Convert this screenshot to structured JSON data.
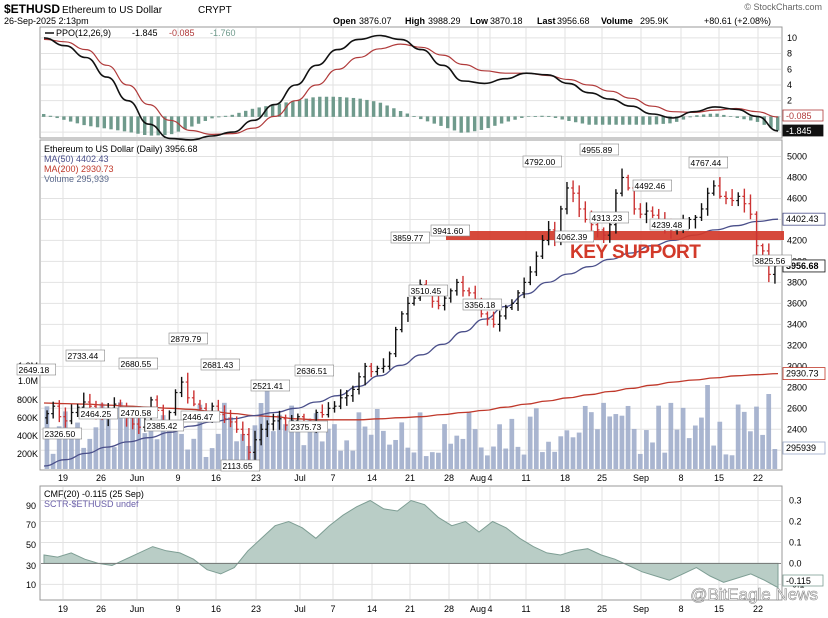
{
  "header": {
    "symbol": "$ETHUSD",
    "name": "Ethereum to US Dollar",
    "exchange": "CRYPT",
    "date": "26-Sep-2025 2:13pm",
    "open_label": "Open",
    "open": "3876.07",
    "high_label": "High",
    "high": "3988.29",
    "low_label": "Low",
    "low": "3870.18",
    "last_label": "Last",
    "last": "3956.68",
    "volume_label": "Volume",
    "volume": "295.9K",
    "change": "+80.61 (+2.08%)",
    "brand": "© StockCharts.com"
  },
  "ppo_panel": {
    "legend_name": "PPO(12,26,9)",
    "legend_ppo": "-1.845",
    "legend_signal": "-0.085",
    "legend_hist": "-1.760",
    "last_signal_tag": "-0.085",
    "last_ppo_tag": "-1.845",
    "colors": {
      "ppo": "#111111",
      "signal": "#b03a3a",
      "histogram": "#6f9a8c"
    }
  },
  "price_panel": {
    "legend_title": "Ethereum to US Dollar (Daily) 3956.68",
    "legend_ma50": "MA(50) 4402.43",
    "legend_ma200": "MA(200) 2930.73",
    "legend_volume": "Volume 295,939",
    "colors": {
      "up": "#111111",
      "down": "#cc3333",
      "ma50": "#4a4f8a",
      "ma200": "#c0392b",
      "volume": "#9aa8c8",
      "support": "#d23a2a"
    },
    "support_text": "KEY SUPPORT",
    "support_level": 3960
  },
  "cmf_panel": {
    "legend_cmf": "CMF(20) -0.115 (25 Sep)",
    "legend_sctr": "SCTR-$ETHUSD undef",
    "last_tag": "-0.115",
    "colors": {
      "fill": "#b9cdc6",
      "line": "#7e9e94"
    }
  },
  "watermark": "@BitEagle News",
  "chart_data": [
    {
      "type": "line",
      "title": "PPO(12,26,9)",
      "ylim": [
        -2.5,
        11
      ],
      "y_ticks": [
        "10",
        "8",
        "6",
        "4",
        "2",
        "0",
        "-2"
      ],
      "x_tick_labels": [],
      "series": [
        {
          "name": "PPO",
          "values": [
            10,
            9,
            7.5,
            5,
            2,
            -1,
            -2.8,
            -3,
            -2.5,
            -2,
            -0.5,
            1.5,
            4,
            6.5,
            8.5,
            9.8,
            10.3,
            9.8,
            8.5,
            6.5,
            4.5,
            4.2,
            4.8,
            5.5,
            5.3,
            4.2,
            3,
            2.2,
            1.3,
            0.3,
            -0.2,
            0.6,
            1.2,
            0.9,
            0,
            -1.845
          ]
        },
        {
          "name": "Signal",
          "values": [
            9.8,
            9.5,
            8.5,
            6.5,
            4,
            1.5,
            -0.5,
            -1.8,
            -2.3,
            -2.2,
            -1.5,
            0,
            2,
            4,
            6,
            7.5,
            8.6,
            9.2,
            8.8,
            7.8,
            6.6,
            5.8,
            5.5,
            5.5,
            5.2,
            4.7,
            4,
            3.2,
            2.3,
            1.3,
            0.6,
            0.5,
            0.8,
            1,
            0.6,
            -0.085
          ]
        },
        {
          "name": "Histogram",
          "values": [
            0.3,
            -0.4,
            -1.1,
            -1.5,
            -1.9,
            -2.4,
            -2.3,
            -1.3,
            -0.2,
            0.2,
            1.0,
            1.5,
            2.0,
            2.5,
            2.5,
            2.3,
            1.8,
            0.7,
            -0.3,
            -1.2,
            -2.1,
            -1.6,
            -0.7,
            0,
            0.1,
            -0.5,
            -1,
            -1,
            -1,
            -1,
            -0.8,
            0.1,
            0.4,
            -0.1,
            -0.6,
            -1.76
          ]
        }
      ]
    },
    {
      "type": "candlestick",
      "title": "Ethereum to US Dollar (Daily) 3956.68",
      "ylim": [
        2050,
        5100
      ],
      "y_ticks": [
        5000,
        4800,
        4600,
        4400,
        4200,
        4000,
        3800,
        3600,
        3400,
        3200,
        3000,
        2800,
        2600,
        2400,
        2200
      ],
      "right_tags": [
        "4402.43",
        "3956.68",
        "2930.73"
      ],
      "x_tick_labels": [
        "19",
        "26",
        "Jun",
        "9",
        "16",
        "23",
        "Jul",
        "7",
        "14",
        "21",
        "28",
        "Aug",
        "4",
        "11",
        "18",
        "25",
        "Sep",
        "8",
        "15",
        "22"
      ],
      "closes": [
        2549,
        2620,
        2520,
        2480,
        2560,
        2610,
        2660,
        2620,
        2570,
        2520,
        2600,
        2640,
        2580,
        2510,
        2450,
        2420,
        2520,
        2680,
        2580,
        2470,
        2560,
        2750,
        2850,
        2700,
        2640,
        2600,
        2550,
        2620,
        2540,
        2500,
        2470,
        2400,
        2350,
        2180,
        2300,
        2400,
        2450,
        2480,
        2500,
        2440,
        2480,
        2520,
        2460,
        2420,
        2560,
        2540,
        2600,
        2620,
        2700,
        2720,
        2780,
        2900,
        3000,
        2950,
        2980,
        3000,
        3120,
        3350,
        3500,
        3600,
        3650,
        3780,
        3700,
        3620,
        3580,
        3650,
        3720,
        3800,
        3720,
        3700,
        3620,
        3500,
        3450,
        3400,
        3480,
        3560,
        3600,
        3700,
        3800,
        3900,
        4050,
        4200,
        4300,
        4200,
        4500,
        4700,
        4650,
        4500,
        4400,
        4350,
        4300,
        4250,
        4350,
        4650,
        4800,
        4700,
        4500,
        4450,
        4480,
        4440,
        4400,
        4320,
        4300,
        4330,
        4380,
        4400,
        4420,
        4500,
        4650,
        4720,
        4620,
        4600,
        4580,
        4620,
        4550,
        4450,
        4150,
        4100,
        3876,
        3957
      ],
      "price_labels": [
        "2649.18",
        "2733.44",
        "2680.55",
        "2879.79",
        "2681.43",
        "2464.25",
        "2470.58",
        "2446.47",
        "2521.41",
        "2636.51",
        "2385.42",
        "2326.50",
        "2375.73",
        "2113.65",
        "3859.77",
        "3941.60",
        "3510.45",
        "3356.18",
        "4792.00",
        "4955.89",
        "4492.46",
        "4767.44",
        "4313.23",
        "4239.48",
        "4062.39",
        "3825.56"
      ],
      "series": [
        {
          "name": "MA(50)",
          "values": [
            2050,
            2110,
            2170,
            2230,
            2280,
            2320,
            2370,
            2430,
            2470,
            2500,
            2530,
            2560,
            2600,
            2660,
            2720,
            2810,
            2910,
            3010,
            3110,
            3210,
            3330,
            3450,
            3570,
            3690,
            3800,
            3880,
            3950,
            4020,
            4080,
            4150,
            4200,
            4250,
            4300,
            4340,
            4380,
            4402
          ]
        },
        {
          "name": "MA(200)",
          "values": [
            2650,
            2645,
            2640,
            2630,
            2620,
            2610,
            2600,
            2590,
            2570,
            2550,
            2530,
            2520,
            2500,
            2490,
            2490,
            2490,
            2500,
            2510,
            2520,
            2540,
            2560,
            2580,
            2610,
            2640,
            2670,
            2700,
            2730,
            2760,
            2790,
            2820,
            2850,
            2870,
            2890,
            2910,
            2920,
            2931
          ]
        },
        {
          "name": "Volume",
          "y_ticks": [
            "1.2M",
            "1.0M",
            "800K",
            "600K",
            "400K",
            "200K"
          ],
          "last_tag": "295939"
        }
      ]
    },
    {
      "type": "area",
      "title": "CMF(20) -0.115 (25 Sep)",
      "left_y_ticks": [
        "90",
        "70",
        "50",
        "30",
        "10"
      ],
      "y_ticks": [
        "0.3",
        "0.2",
        "0.1",
        "0.0",
        "-0.1"
      ],
      "ylim": [
        -0.16,
        0.35
      ],
      "x_tick_labels": [
        "19",
        "26",
        "Jun",
        "9",
        "16",
        "23",
        "Jul",
        "7",
        "14",
        "21",
        "28",
        "Aug",
        "4",
        "11",
        "18",
        "25",
        "Sep",
        "8",
        "15",
        "22"
      ],
      "series": [
        {
          "name": "CMF(20)",
          "values": [
            0.04,
            0.03,
            0.05,
            0.02,
            0.0,
            -0.01,
            0.02,
            0.05,
            0.08,
            0.06,
            0.05,
            0.02,
            -0.03,
            -0.05,
            -0.02,
            0.06,
            0.12,
            0.18,
            0.2,
            0.17,
            0.12,
            0.18,
            0.23,
            0.27,
            0.3,
            0.26,
            0.25,
            0.3,
            0.28,
            0.22,
            0.18,
            0.2,
            0.15,
            0.2,
            0.17,
            0.12,
            0.08,
            0.05,
            0.04,
            0.06,
            0.07,
            0.04,
            0.02,
            -0.01,
            -0.04,
            -0.06,
            -0.08,
            -0.05,
            -0.02,
            -0.06,
            -0.09,
            -0.07,
            -0.05,
            -0.08,
            -0.115
          ]
        }
      ]
    }
  ]
}
